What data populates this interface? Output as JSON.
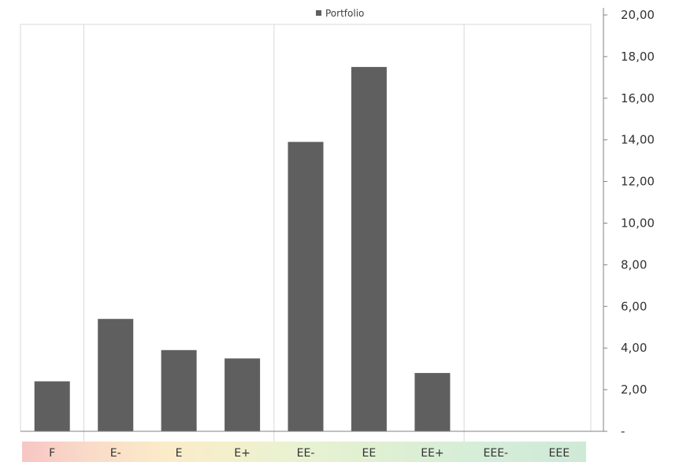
{
  "chart_data": {
    "type": "bar",
    "legend": {
      "entries": [
        "Portfolio"
      ],
      "position": "top"
    },
    "categories": [
      "F",
      "E-",
      "E",
      "E+",
      "EE-",
      "EE",
      "EE+",
      "EEE-",
      "EEE"
    ],
    "series": [
      {
        "name": "Portfolio",
        "values": [
          2.4,
          5.4,
          3.9,
          3.5,
          13.9,
          17.5,
          2.8,
          0,
          0
        ],
        "color": "#5f5f5f"
      }
    ],
    "y_axis": {
      "position": "right",
      "ylim": [
        0,
        20
      ],
      "ticks": [
        0,
        2,
        4,
        6,
        8,
        10,
        12,
        14,
        16,
        18,
        20
      ],
      "tick_labels": [
        "-",
        "2,00",
        "4,00",
        "6,00",
        "8,00",
        "10,00",
        "12,00",
        "14,00",
        "16,00",
        "18,00",
        "20,00"
      ]
    },
    "group_boundaries_after_index": [
      0,
      3,
      6
    ],
    "category_band_colors": [
      "#f7c6c4",
      "#f9dcc8",
      "#fbebc9",
      "#f3f0cc",
      "#e7f2d2",
      "#e0f0d2",
      "#d8eed6",
      "#d3ecd8",
      "#cfe9d7"
    ],
    "grid": false
  }
}
